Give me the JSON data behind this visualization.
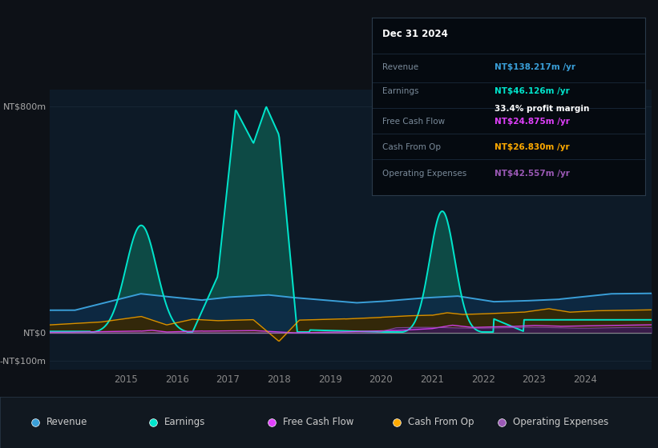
{
  "bg_color": "#0d1117",
  "chart_bg": "#0d1a27",
  "grid_color": "#1a2a3a",
  "ylabel_top": "NT$800m",
  "ylabel_zero": "NT$0",
  "ylabel_neg": "-NT$100m",
  "xlim_start": 2013.5,
  "xlim_end": 2025.3,
  "ylim_min": -130,
  "ylim_max": 860,
  "xticks": [
    2015,
    2016,
    2017,
    2018,
    2019,
    2020,
    2021,
    2022,
    2023,
    2024
  ],
  "revenue_color": "#3a9fd8",
  "earnings_color": "#00e5cc",
  "fcf_color": "#e040fb",
  "cashfromop_color": "#ffaa00",
  "opex_color": "#9b59b6",
  "earnings_fill_color": "#0d4a45",
  "revenue_fill_color": "#0d2a45",
  "cashfromop_fill_color": "#3a2a00",
  "opex_fill_color": "#3a1a55",
  "legend_items": [
    "Revenue",
    "Earnings",
    "Free Cash Flow",
    "Cash From Op",
    "Operating Expenses"
  ],
  "legend_colors": [
    "#3a9fd8",
    "#00e5cc",
    "#e040fb",
    "#ffaa00",
    "#9b59b6"
  ],
  "info_box": {
    "date": "Dec 31 2024",
    "revenue_label": "Revenue",
    "revenue_value": "NT$138.217m /yr",
    "revenue_color": "#3a9fd8",
    "earnings_label": "Earnings",
    "earnings_value": "NT$46.126m /yr",
    "earnings_color": "#00e5cc",
    "margin_text": "33.4% profit margin",
    "fcf_label": "Free Cash Flow",
    "fcf_value": "NT$24.875m /yr",
    "fcf_color": "#e040fb",
    "cashop_label": "Cash From Op",
    "cashop_value": "NT$26.830m /yr",
    "cashop_color": "#ffaa00",
    "opex_label": "Operating Expenses",
    "opex_value": "NT$42.557m /yr",
    "opex_color": "#9b59b6"
  }
}
